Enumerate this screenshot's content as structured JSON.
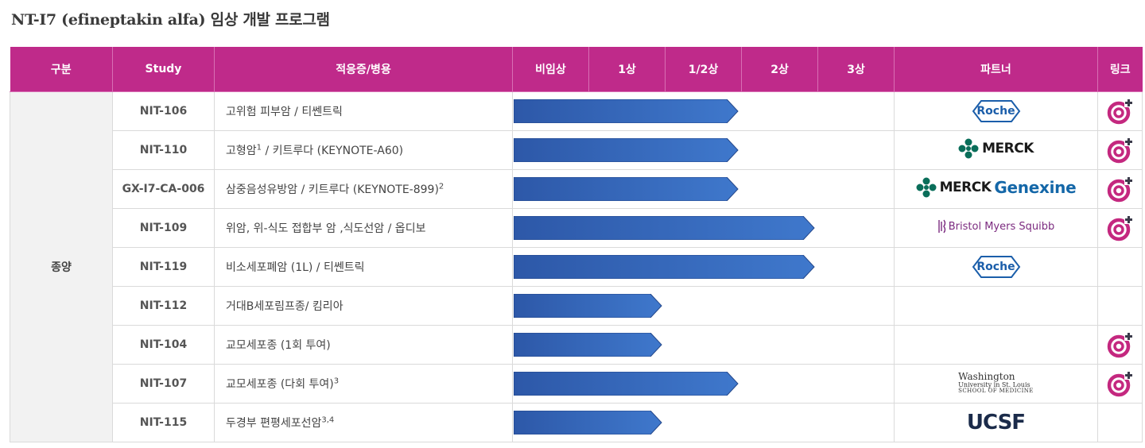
{
  "page": {
    "title": "NT-I7 (efineptakin alfa) 임상 개발 프로그램"
  },
  "table": {
    "headers": {
      "category": "구분",
      "study": "Study",
      "indication": "적응증/병용",
      "phases": [
        "비임상",
        "1상",
        "1/2상",
        "2상",
        "3상"
      ],
      "partner": "파트너",
      "link": "링크"
    },
    "category": "종양",
    "rows": [
      {
        "study": "NIT-106",
        "indication": "고위험 피부암 / 티쎈트릭",
        "sup": "",
        "indication_after": "",
        "sup2": "",
        "progress_phase_end": 3,
        "partner": "roche",
        "partner_text": "Roche",
        "has_link": true
      },
      {
        "study": "NIT-110",
        "indication": "고형암",
        "sup": "1",
        "indication_after": " / 키트루다 (KEYNOTE-A60)",
        "sup2": "",
        "progress_phase_end": 3,
        "partner": "merck",
        "partner_text": "MERCK",
        "has_link": true
      },
      {
        "study": "GX-I7-CA-006",
        "indication": "삼중음성유방암 / 키트루다 (KEYNOTE-899)",
        "sup": "2",
        "indication_after": "",
        "sup2": "",
        "progress_phase_end": 3,
        "partner": "merck-genexine",
        "partner_text": "MERCK",
        "partner_text2": "Genexine",
        "has_link": true
      },
      {
        "study": "NIT-109",
        "indication": "위암, 위-식도 접합부 암 ,식도선암 / 옵디보",
        "sup": "",
        "indication_after": "",
        "sup2": "",
        "progress_phase_end": 4,
        "partner": "bms",
        "partner_text": "Bristol Myers Squibb",
        "has_link": true
      },
      {
        "study": "NIT-119",
        "indication": "비소세포폐암 (1L) / 티쎈트릭",
        "sup": "",
        "indication_after": "",
        "sup2": "",
        "progress_phase_end": 4,
        "partner": "roche",
        "partner_text": "Roche",
        "has_link": false
      },
      {
        "study": "NIT-112",
        "indication": "거대B세포림프종/ 킴리아",
        "sup": "",
        "indication_after": "",
        "sup2": "",
        "progress_phase_end": 2,
        "partner": "",
        "partner_text": "",
        "has_link": false
      },
      {
        "study": "NIT-104",
        "indication": "교모세포종 (1회 투여)",
        "sup": "",
        "indication_after": "",
        "sup2": "",
        "progress_phase_end": 2,
        "partner": "",
        "partner_text": "",
        "has_link": true
      },
      {
        "study": "NIT-107",
        "indication": "교모세포종 (다회 투여)",
        "sup": "3",
        "indication_after": "",
        "sup2": "",
        "progress_phase_end": 3,
        "partner": "washu",
        "partner_text": "Washington",
        "partner_text2": "University in St. Louis",
        "partner_text3": "SCHOOL OF MEDICINE",
        "has_link": true
      },
      {
        "study": "NIT-115",
        "indication": "두경부 편평세포선암",
        "sup": "3,4",
        "indication_after": "",
        "sup2": "",
        "progress_phase_end": 2,
        "partner": "ucsf",
        "partner_text": "UCSF",
        "has_link": false
      }
    ]
  },
  "colors": {
    "header_bg": "#bf2a8a",
    "bar_fill": "#3a6cc0",
    "link_icon": "#c4287f"
  },
  "icons": {
    "link": "link-target-icon",
    "roche": "roche-logo",
    "merck": "merck-logo"
  }
}
